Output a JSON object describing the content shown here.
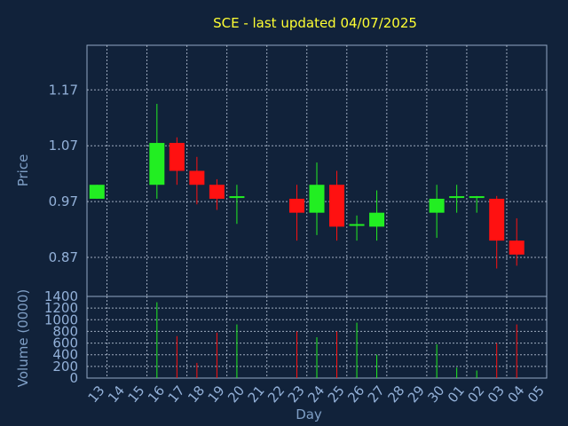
{
  "chart_data": {
    "type": "candlestick",
    "title": "SCE - last updated 04/07/2025",
    "xlabel": "Day",
    "price_axis": {
      "label": "Price",
      "ticks": [
        0.87,
        0.97,
        1.07,
        1.17
      ],
      "tick_labels": [
        "0.87",
        "0.97",
        "1.07",
        "1.17"
      ],
      "range": [
        0.8,
        1.25
      ],
      "grid": true
    },
    "volume_axis": {
      "label": "Volume (0000)",
      "ticks": [
        0,
        200,
        400,
        600,
        800,
        1000,
        1200,
        1400
      ],
      "tick_labels": [
        "0",
        "200",
        "400",
        "600",
        "800",
        "1000",
        "1200",
        "1400"
      ],
      "range": [
        0,
        1400
      ],
      "grid": true
    },
    "x_ticks": [
      "13",
      "14",
      "15",
      "16",
      "17",
      "18",
      "19",
      "20",
      "21",
      "22",
      "23",
      "24",
      "25",
      "26",
      "27",
      "28",
      "29",
      "30",
      "01",
      "02",
      "03",
      "04",
      "05"
    ],
    "colors": {
      "up": "#22ee22",
      "down": "#ff1111",
      "background": "#11223a",
      "title": "#ffff33"
    },
    "candles": [
      {
        "day": "13",
        "open": 0.975,
        "close": 1.0,
        "high": 1.0,
        "low": 0.975,
        "volume": 0
      },
      {
        "day": "16",
        "open": 1.0,
        "close": 1.075,
        "high": 1.145,
        "low": 0.975,
        "volume": 1300
      },
      {
        "day": "17",
        "open": 1.075,
        "close": 1.025,
        "high": 1.085,
        "low": 1.0,
        "volume": 720
      },
      {
        "day": "18",
        "open": 1.025,
        "close": 1.0,
        "high": 1.05,
        "low": 0.965,
        "volume": 260
      },
      {
        "day": "19",
        "open": 1.0,
        "close": 0.975,
        "high": 1.01,
        "low": 0.955,
        "volume": 780
      },
      {
        "day": "20",
        "open": 0.975,
        "close": 0.978,
        "high": 1.0,
        "low": 0.93,
        "volume": 920
      },
      {
        "day": "23",
        "open": 0.975,
        "close": 0.95,
        "high": 1.0,
        "low": 0.9,
        "volume": 800
      },
      {
        "day": "24",
        "open": 0.95,
        "close": 1.0,
        "high": 1.04,
        "low": 0.91,
        "volume": 700
      },
      {
        "day": "25",
        "open": 1.0,
        "close": 0.925,
        "high": 1.025,
        "low": 0.9,
        "volume": 800
      },
      {
        "day": "26",
        "open": 0.925,
        "close": 0.928,
        "high": 0.945,
        "low": 0.9,
        "volume": 950
      },
      {
        "day": "27",
        "open": 0.925,
        "close": 0.95,
        "high": 0.99,
        "low": 0.9,
        "volume": 400
      },
      {
        "day": "30",
        "open": 0.95,
        "close": 0.975,
        "high": 1.0,
        "low": 0.905,
        "volume": 580
      },
      {
        "day": "01",
        "open": 0.975,
        "close": 0.978,
        "high": 1.0,
        "low": 0.95,
        "volume": 180
      },
      {
        "day": "02",
        "open": 0.975,
        "close": 0.978,
        "high": 0.98,
        "low": 0.95,
        "volume": 130
      },
      {
        "day": "03",
        "open": 0.975,
        "close": 0.9,
        "high": 0.98,
        "low": 0.85,
        "volume": 600
      },
      {
        "day": "04",
        "open": 0.9,
        "close": 0.875,
        "high": 0.94,
        "low": 0.855,
        "volume": 920
      }
    ]
  }
}
